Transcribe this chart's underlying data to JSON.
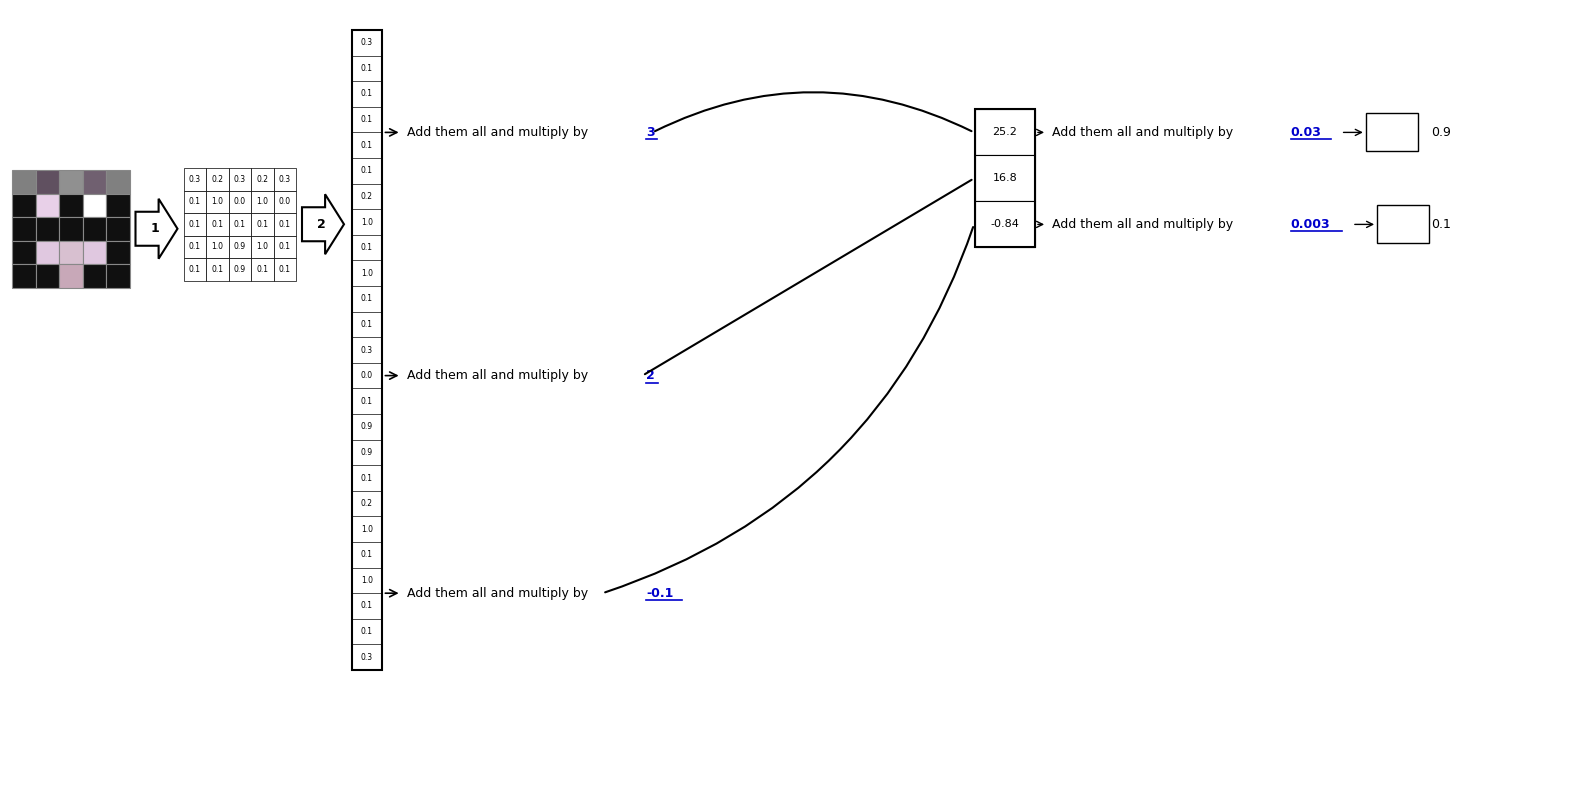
{
  "pixel_grid": [
    [
      "#808080",
      "#605060",
      "#909090",
      "#706070",
      "#808080"
    ],
    [
      "#101010",
      "#e8d0e8",
      "#101010",
      "#ffffff",
      "#101010"
    ],
    [
      "#101010",
      "#101010",
      "#101010",
      "#101010",
      "#101010"
    ],
    [
      "#101010",
      "#e0c8e0",
      "#d8c0d0",
      "#e0c8e0",
      "#101010"
    ],
    [
      "#101010",
      "#101010",
      "#c8a8b8",
      "#101010",
      "#101010"
    ]
  ],
  "matrix_values": [
    [
      "0.3",
      "0.2",
      "0.3",
      "0.2",
      "0.3"
    ],
    [
      "0.1",
      "1.0",
      "0.0",
      "1.0",
      "0.0"
    ],
    [
      "0.1",
      "0.1",
      "0.1",
      "0.1",
      "0.1"
    ],
    [
      "0.1",
      "1.0",
      "0.9",
      "1.0",
      "0.1"
    ],
    [
      "0.1",
      "0.1",
      "0.9",
      "0.1",
      "0.1"
    ]
  ],
  "column_values": [
    "0.3",
    "0.1",
    "0.1",
    "0.1",
    "0.1",
    "0.1",
    "0.2",
    "1.0",
    "0.1",
    "1.0",
    "0.1",
    "0.1",
    "0.3",
    "0.0",
    "0.1",
    "0.9",
    "0.9",
    "0.1",
    "0.2",
    "1.0",
    "0.1",
    "1.0",
    "0.1",
    "0.1",
    "0.3"
  ],
  "neuron_values": [
    "25.2",
    "16.8",
    "-0.84"
  ],
  "output_values": [
    "0.9",
    "0.1"
  ],
  "arrow1_label": "1",
  "arrow2_label": "2",
  "group1_text_plain": "Add them all and multiply by ",
  "group1_text_bold": "3",
  "group2_text_plain": "Add them all and multiply by ",
  "group2_text_bold": "2",
  "group3_text_plain": "Add them all and multiply by ",
  "group3_text_bold": "-0.1",
  "out1_text_plain": "Add them all and multiply by ",
  "out1_text_bold": "0.03",
  "out2_text_plain": "Add them all and multiply by ",
  "out2_text_bold": "0.003",
  "highlight_color": "#0000cc",
  "bg_color": "#ffffff"
}
